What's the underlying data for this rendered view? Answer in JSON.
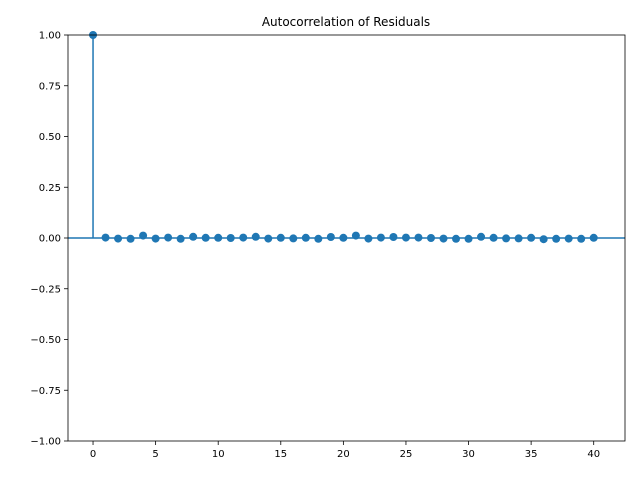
{
  "chart_data": {
    "type": "stem",
    "title": "Autocorrelation of Residuals",
    "xlabel": "",
    "ylabel": "",
    "xlim": [
      -2,
      42.5
    ],
    "ylim": [
      -1.0,
      1.0
    ],
    "x_ticks": [
      0,
      5,
      10,
      15,
      20,
      25,
      30,
      35,
      40
    ],
    "y_ticks": [
      -1.0,
      -0.75,
      -0.5,
      -0.25,
      0.0,
      0.25,
      0.5,
      0.75,
      1.0
    ],
    "y_tick_labels": [
      "−1.00",
      "−0.75",
      "−0.50",
      "−0.25",
      "0.00",
      "0.25",
      "0.50",
      "0.75",
      "1.00"
    ],
    "x_tick_labels": [
      "0",
      "5",
      "10",
      "15",
      "20",
      "25",
      "30",
      "35",
      "40"
    ],
    "grid": false,
    "color": "#1f77b4",
    "series": [
      {
        "x": [
          0,
          1,
          2,
          3,
          4,
          5,
          6,
          7,
          8,
          9,
          10,
          11,
          12,
          13,
          14,
          15,
          16,
          17,
          18,
          19,
          20,
          21,
          22,
          23,
          24,
          25,
          26,
          27,
          28,
          29,
          30,
          31,
          32,
          33,
          34,
          35,
          36,
          37,
          38,
          39,
          40
        ],
        "values": [
          1.0,
          0.002,
          -0.003,
          -0.004,
          0.012,
          -0.003,
          0.002,
          -0.004,
          0.006,
          0.001,
          0.001,
          0.0,
          0.002,
          0.006,
          -0.003,
          0.001,
          -0.002,
          0.001,
          -0.004,
          0.005,
          0.001,
          0.012,
          -0.003,
          0.002,
          0.005,
          0.002,
          0.002,
          0.0,
          -0.003,
          -0.004,
          -0.004,
          0.006,
          0.001,
          -0.002,
          -0.002,
          0.001,
          -0.006,
          -0.004,
          -0.003,
          -0.004,
          0.001
        ]
      }
    ]
  }
}
